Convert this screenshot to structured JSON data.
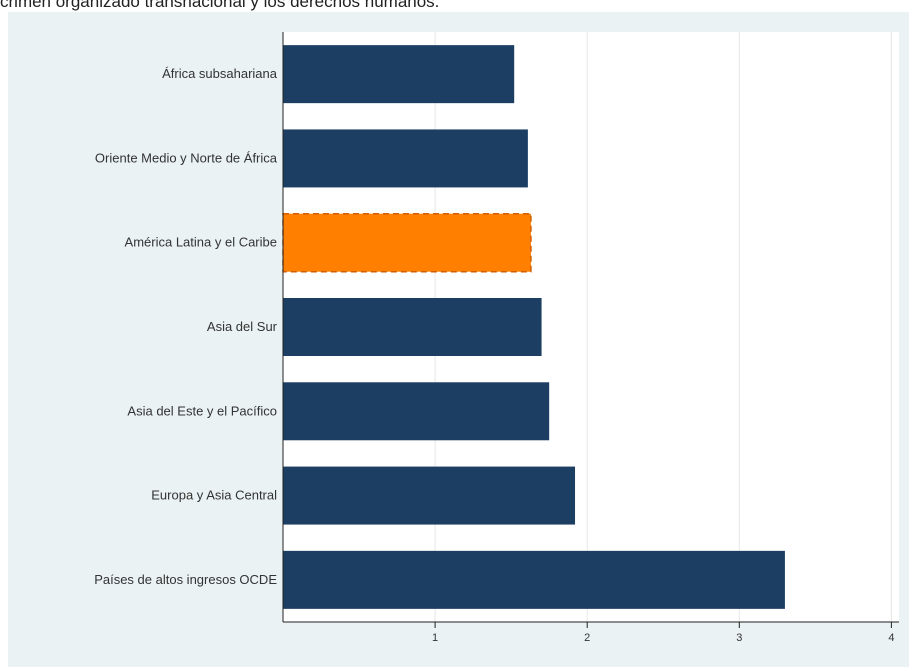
{
  "caption": "crimen organizado transnacional y los derechos humanos.",
  "colors": {
    "panel_bg": "#eaf2f3",
    "plot_bg": "#ffffff",
    "bar": "#1c3e63",
    "highlight": "#ff7f00",
    "grid": "#e6e6e6",
    "axis": "#222222"
  },
  "chart_data": {
    "type": "bar",
    "orientation": "horizontal",
    "categories": [
      "África subsahariana",
      "Oriente Medio y Norte de África",
      "América Latina y el Caribe",
      "Asia del Sur",
      "Asia del Este y el Pacífico",
      "Europa y Asia Central",
      "Países de altos ingresos OCDE"
    ],
    "values": [
      1.52,
      1.61,
      1.63,
      1.7,
      1.75,
      1.92,
      3.3
    ],
    "highlight_category": "América Latina y el Caribe",
    "xlim": [
      0,
      4.05
    ],
    "xticks": [
      1,
      2,
      3,
      4
    ],
    "xtick_labels": [
      "1",
      "2",
      "3",
      "4"
    ],
    "grid": true,
    "title": "",
    "xlabel": "",
    "ylabel": ""
  }
}
